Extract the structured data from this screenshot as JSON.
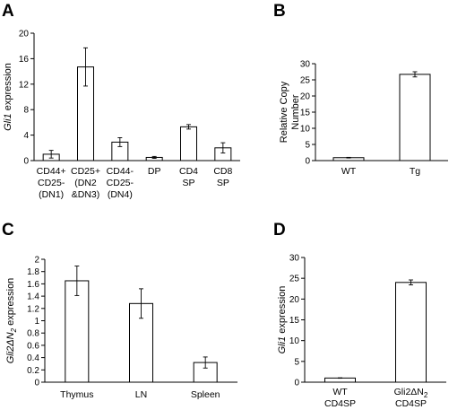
{
  "chart_data": [
    {
      "panel": "A",
      "type": "bar",
      "ylabel_italic": "Gli1",
      "ylabel_rest": " expression",
      "ylim": [
        0,
        20
      ],
      "yticks": [
        0,
        4,
        8,
        12,
        16,
        20
      ],
      "categories": [
        [
          "CD44+",
          "CD25-",
          "(DN1)"
        ],
        [
          "CD25+",
          "(DN2",
          "&DN3)"
        ],
        [
          "CD44-",
          "CD25-",
          "(DN4)"
        ],
        [
          "DP"
        ],
        [
          "CD4",
          "SP"
        ],
        [
          "CD8",
          "SP"
        ]
      ],
      "values": [
        1.0,
        14.7,
        2.9,
        0.5,
        5.3,
        2.0
      ],
      "errors": [
        0.6,
        3.0,
        0.7,
        0.15,
        0.35,
        0.8
      ]
    },
    {
      "panel": "B",
      "type": "bar",
      "ylabel_lines": [
        "Relative Copy",
        "Number"
      ],
      "ylim": [
        0,
        30
      ],
      "yticks": [
        0,
        5,
        10,
        15,
        20,
        25,
        30
      ],
      "categories": [
        [
          "WT"
        ],
        [
          "Tg"
        ]
      ],
      "values": [
        0.9,
        26.7
      ],
      "errors": [
        0.1,
        0.8
      ]
    },
    {
      "panel": "C",
      "type": "bar",
      "ylabel_italic": "Gli2ΔN",
      "ylabel_sub": "2",
      "ylabel_rest": " expression",
      "ylim": [
        0,
        2
      ],
      "yticks": [
        0,
        0.2,
        0.4,
        0.6,
        0.8,
        1,
        1.2,
        1.4,
        1.6,
        1.8,
        2
      ],
      "ytick_labels": [
        "0",
        "0.2",
        "0.4",
        "0.6",
        "0.8",
        "1",
        "1.2",
        "1.4",
        "1.6",
        "1.8",
        "2"
      ],
      "categories": [
        [
          "Thymus"
        ],
        [
          "LN"
        ],
        [
          "Spleen"
        ]
      ],
      "values": [
        1.65,
        1.28,
        0.32
      ],
      "errors": [
        0.24,
        0.24,
        0.09
      ]
    },
    {
      "panel": "D",
      "type": "bar",
      "ylabel_italic": "Gli1",
      "ylabel_rest": " expression",
      "ylim": [
        0,
        30
      ],
      "yticks": [
        0,
        5,
        10,
        15,
        20,
        25,
        30
      ],
      "categories": [
        [
          "WT",
          "CD4SP"
        ],
        [
          "Gli2ΔN₂",
          "CD4SP"
        ]
      ],
      "values": [
        1.0,
        24.0
      ],
      "errors": [
        0.05,
        0.6
      ]
    }
  ]
}
